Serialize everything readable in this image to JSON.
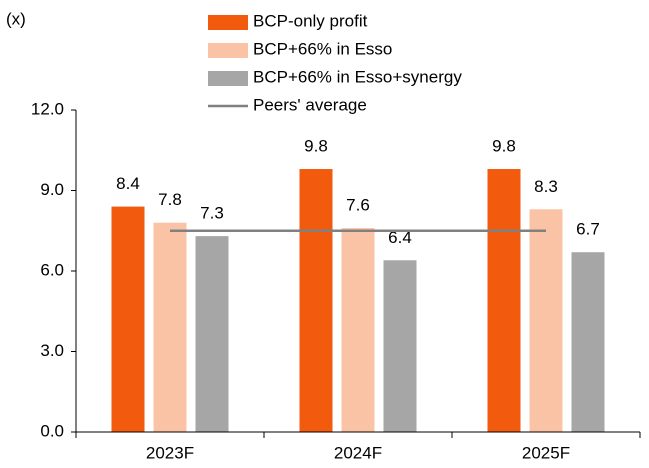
{
  "chart_data": {
    "type": "bar",
    "y_label": "(x)",
    "categories": [
      "2023F",
      "2024F",
      "2025F"
    ],
    "series": [
      {
        "name": "BCP-only profit",
        "color": "#f25a0e",
        "values": [
          8.4,
          9.8,
          9.8
        ]
      },
      {
        "name": "BCP+66% in Esso",
        "color": "#fbc3a5",
        "values": [
          7.8,
          7.6,
          8.3
        ]
      },
      {
        "name": "BCP+66% in Esso+synergy",
        "color": "#a6a6a6",
        "values": [
          7.3,
          6.4,
          6.7
        ]
      },
      {
        "name": "Peers' average",
        "type": "line",
        "color": "#808080",
        "values": [
          7.5,
          7.5,
          7.5
        ]
      }
    ],
    "ylim": [
      0,
      12
    ],
    "yticks": [
      {
        "value": 0,
        "label": "0.0"
      },
      {
        "value": 3,
        "label": "3.0"
      },
      {
        "value": 6,
        "label": "6.0"
      },
      {
        "value": 9,
        "label": "9.0"
      },
      {
        "value": 12,
        "label": "12.0"
      }
    ],
    "legend": "top"
  }
}
